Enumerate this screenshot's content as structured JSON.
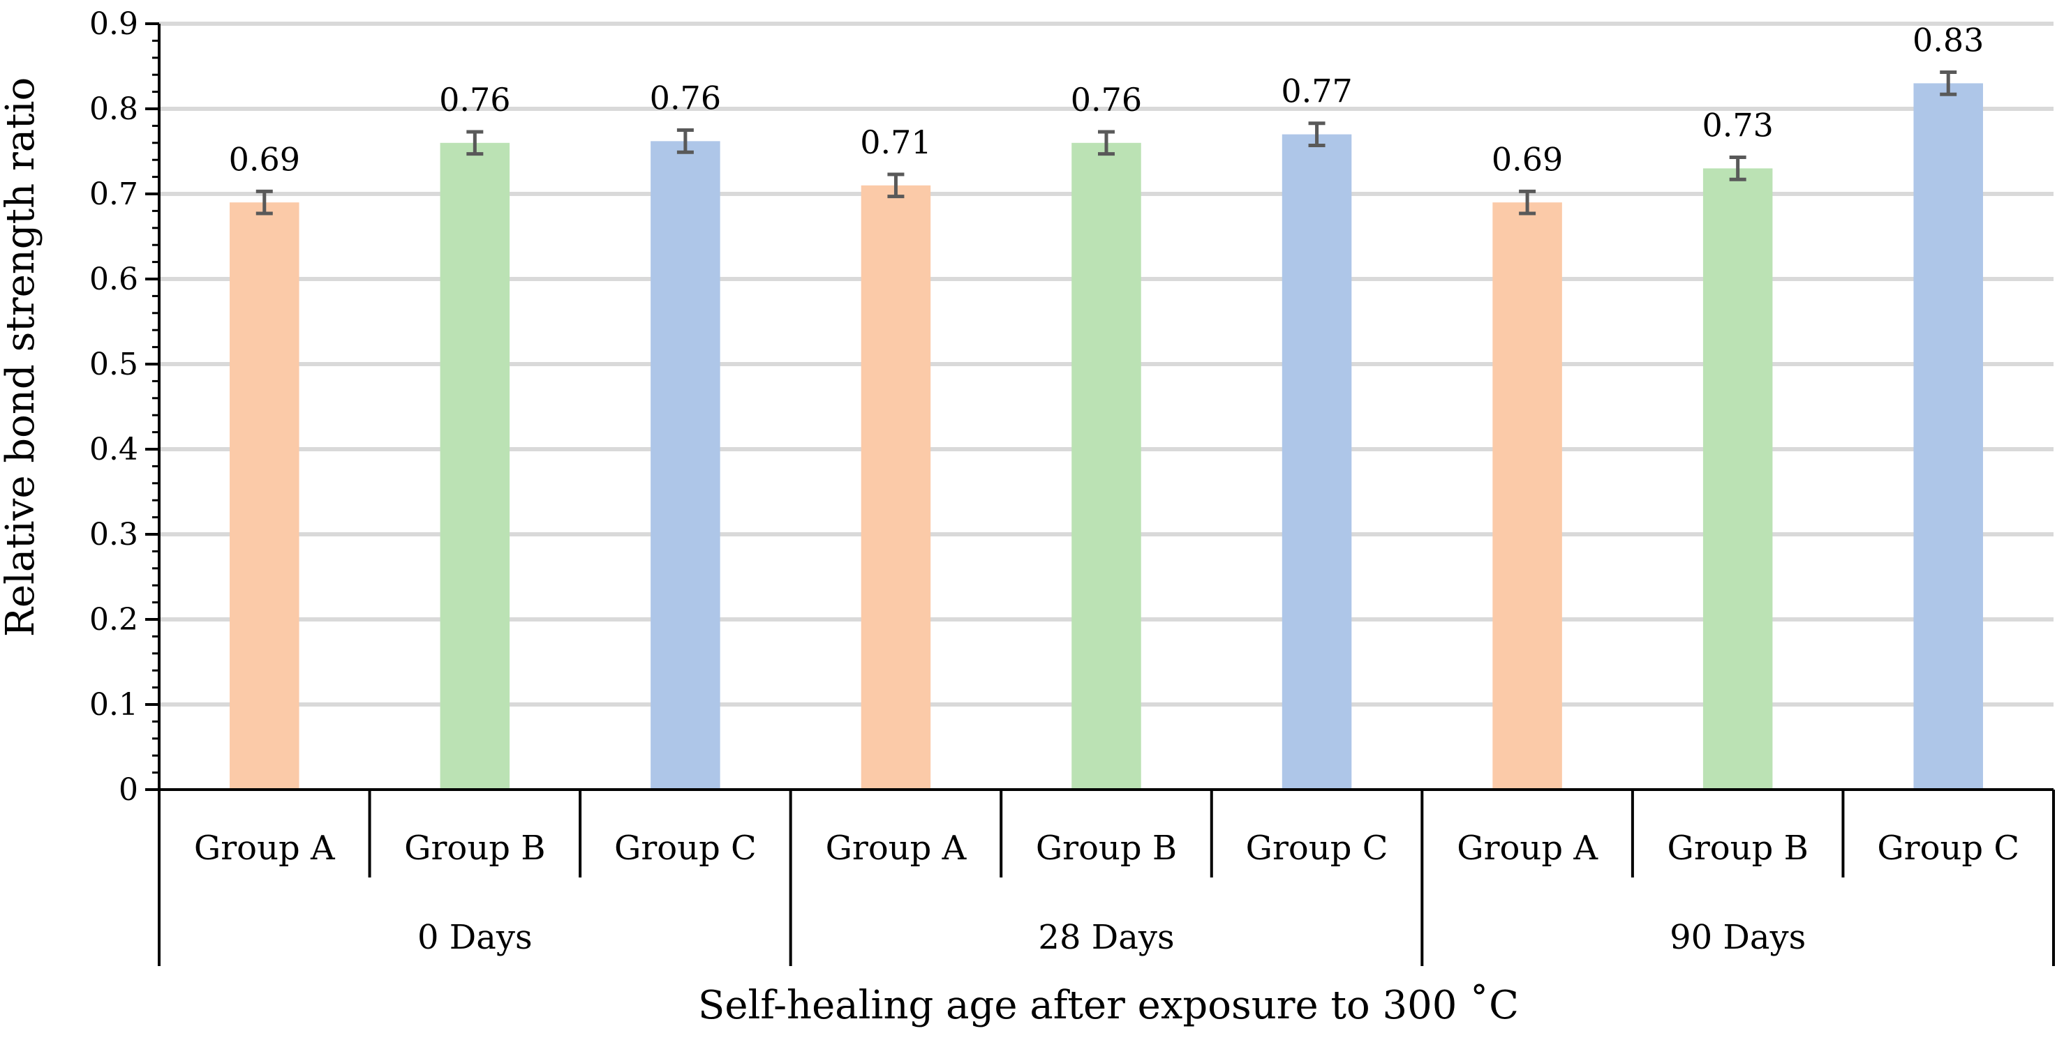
{
  "chart_data": {
    "type": "bar",
    "ylabel": "Relative bond strength ratio",
    "xlabel": "Self-healing age after exposure to 300 ˚C",
    "ylim": [
      0,
      0.9
    ],
    "y_ticks": [
      0,
      0.1,
      0.2,
      0.3,
      0.4,
      0.5,
      0.6,
      0.7,
      0.8,
      0.9
    ],
    "y_tick_labels": [
      "0",
      "0.1",
      "0.2",
      "0.3",
      "0.4",
      "0.5",
      "0.6",
      "0.7",
      "0.8",
      "0.9"
    ],
    "y_minor_step": 0.02,
    "grid": true,
    "groups": [
      {
        "label": "0 Days",
        "bars": [
          {
            "category": "Group A",
            "value": 0.69,
            "label": "0.69",
            "error": 0.013,
            "color": "#fbcaa8"
          },
          {
            "category": "Group B",
            "value": 0.76,
            "label": "0.76",
            "error": 0.013,
            "color": "#bbe2b4"
          },
          {
            "category": "Group C",
            "value": 0.762,
            "label": "0.76",
            "error": 0.013,
            "color": "#aec6e8"
          }
        ]
      },
      {
        "label": "28 Days",
        "bars": [
          {
            "category": "Group A",
            "value": 0.71,
            "label": "0.71",
            "error": 0.013,
            "color": "#fbcaa8"
          },
          {
            "category": "Group B",
            "value": 0.76,
            "label": "0.76",
            "error": 0.013,
            "color": "#bbe2b4"
          },
          {
            "category": "Group C",
            "value": 0.77,
            "label": "0.77",
            "error": 0.013,
            "color": "#aec6e8"
          }
        ]
      },
      {
        "label": "90 Days",
        "bars": [
          {
            "category": "Group A",
            "value": 0.69,
            "label": "0.69",
            "error": 0.013,
            "color": "#fbcaa8"
          },
          {
            "category": "Group B",
            "value": 0.73,
            "label": "0.73",
            "error": 0.013,
            "color": "#bbe2b4"
          },
          {
            "category": "Group C",
            "value": 0.83,
            "label": "0.83",
            "error": 0.013,
            "color": "#aec6e8"
          }
        ]
      }
    ],
    "colors": {
      "grid": "#d9d9d9",
      "axis": "#000000",
      "error_bar": "#595959"
    }
  }
}
